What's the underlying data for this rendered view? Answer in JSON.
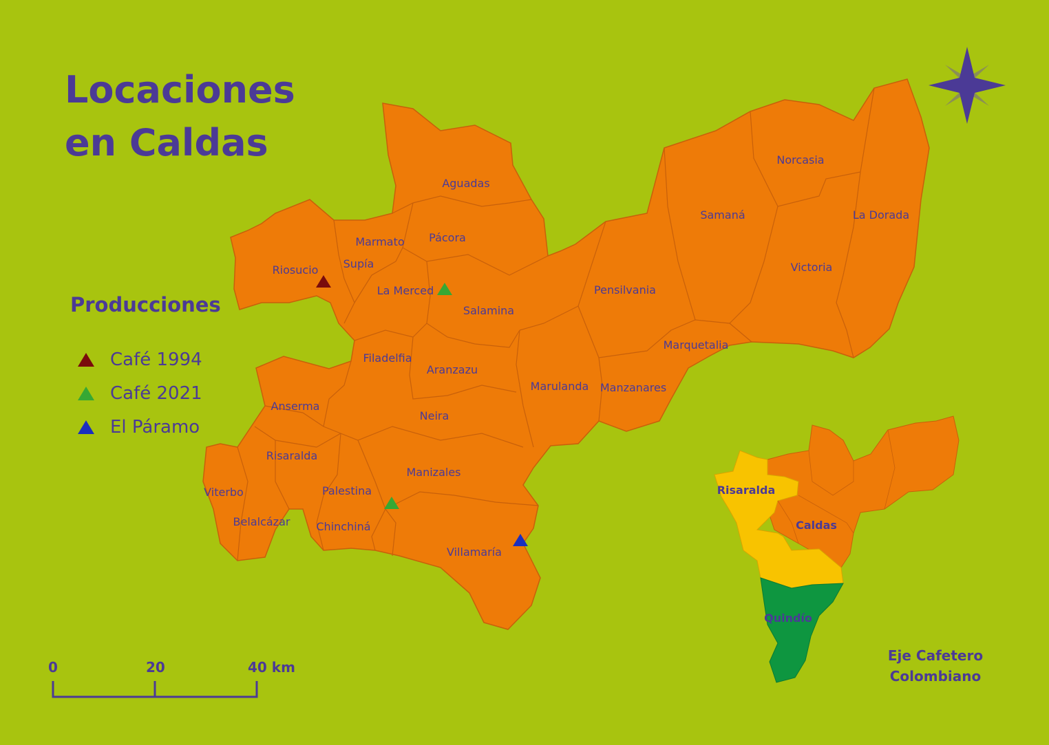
{
  "title": {
    "line1": "Locaciones",
    "line2": "en Caldas"
  },
  "legend": {
    "heading": "Producciones",
    "items": [
      {
        "label": "Café 1994",
        "color": "#7a0c0c"
      },
      {
        "label": "Café 2021",
        "color": "#36a834"
      },
      {
        "label": "El Páramo",
        "color": "#1b2fbf"
      }
    ]
  },
  "colors": {
    "background": "#a8c40f",
    "caldas": "#ee7b08",
    "risaralda": "#f8c300",
    "quindio": "#0e9640",
    "text": "#4b3a96",
    "compass": "#4b3a96",
    "compass_secondary": "#8b8f55"
  },
  "municipalities": [
    "Aguadas",
    "Pácora",
    "Marmato",
    "Supía",
    "Riosucio",
    "La Merced",
    "Salamina",
    "Pensilvania",
    "Samaná",
    "Norcasia",
    "La Dorada",
    "Victoria",
    "Marquetalia",
    "Manzanares",
    "Marulanda",
    "Filadelfia",
    "Aranzazu",
    "Neira",
    "Anserma",
    "Risaralda",
    "Viterbo",
    "Belalcázar",
    "Palestina",
    "Chinchiná",
    "Manizales",
    "Villamaría"
  ],
  "inset": {
    "regions": [
      "Risaralda",
      "Caldas",
      "Quindío"
    ],
    "caption": [
      "Eje Cafetero",
      "Colombiano"
    ]
  },
  "scale_bar": {
    "labels": [
      "0",
      "20",
      "40 km"
    ]
  },
  "compass": {
    "icon": "compass-rose-icon"
  }
}
